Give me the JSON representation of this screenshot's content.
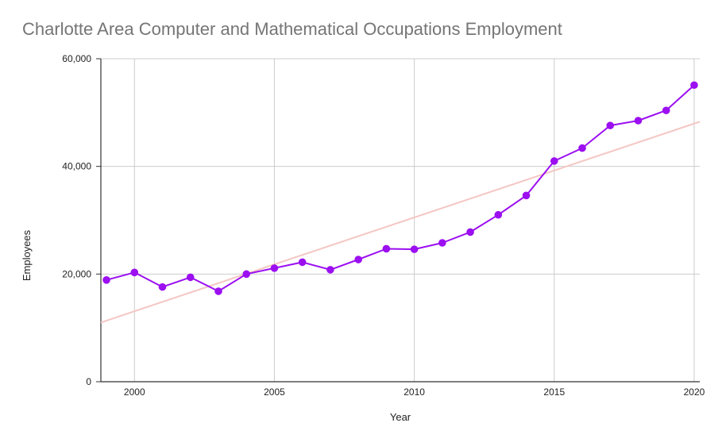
{
  "chart_data": {
    "type": "line",
    "title": "Charlotte Area Computer and Mathematical Occupations Employment",
    "xlabel": "Year",
    "ylabel": "Employees",
    "xlim": [
      1999,
      2020
    ],
    "ylim": [
      0,
      60000
    ],
    "x_ticks": [
      "2000",
      "2005",
      "2010",
      "2015",
      "2020"
    ],
    "y_ticks": [
      "0",
      "20,000",
      "40,000",
      "60,000"
    ],
    "grid": true,
    "legend": "none",
    "series": [
      {
        "color": "#9b0ff0",
        "x": [
          1999,
          2000,
          2001,
          2002,
          2003,
          2004,
          2005,
          2006,
          2007,
          2008,
          2009,
          2010,
          2011,
          2012,
          2013,
          2014,
          2015,
          2016,
          2017,
          2018,
          2019,
          2020
        ],
        "y": [
          18900,
          20300,
          17600,
          19400,
          16800,
          20000,
          21100,
          22200,
          20800,
          22700,
          24700,
          24600,
          25800,
          27800,
          31000,
          34600,
          41000,
          43400,
          47600,
          48500,
          50400,
          55100
        ]
      }
    ],
    "trendline": {
      "type": "linear",
      "color": "#f4c7c3",
      "y_start": 11000,
      "y_end": 48300
    }
  }
}
